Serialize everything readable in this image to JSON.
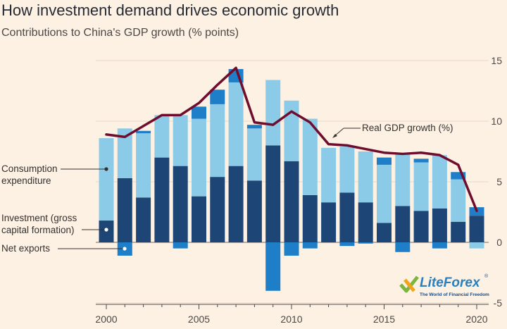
{
  "header": {
    "title": "How investment demand drives economic growth",
    "subtitle": "Contributions to China's GDP growth (% points)"
  },
  "chart_data": {
    "type": "bar",
    "stacked": true,
    "x": [
      2000,
      2001,
      2002,
      2003,
      2004,
      2005,
      2006,
      2007,
      2008,
      2009,
      2010,
      2011,
      2012,
      2013,
      2014,
      2015,
      2016,
      2017,
      2018,
      2019,
      2020
    ],
    "xticks": [
      "2000",
      "2005",
      "2010",
      "2015",
      "2020"
    ],
    "yticks": [
      "15",
      "10",
      "5",
      "0",
      "-5"
    ],
    "ylim": [
      -5,
      15
    ],
    "series": [
      {
        "name": "Investment (gross capital formation)",
        "color": "#1d4677",
        "values": [
          1.8,
          5.3,
          3.7,
          7.0,
          6.3,
          3.8,
          5.4,
          6.3,
          5.1,
          8.0,
          6.7,
          3.9,
          3.3,
          4.1,
          3.3,
          1.6,
          3.0,
          2.6,
          2.8,
          1.7,
          2.2
        ]
      },
      {
        "name": "Consumption expenditure",
        "color": "#8ccbe8",
        "values": [
          6.8,
          4.1,
          5.3,
          3.5,
          4.2,
          6.4,
          6.0,
          6.9,
          4.3,
          5.4,
          5.0,
          6.3,
          4.5,
          3.8,
          4.2,
          4.8,
          4.3,
          4.0,
          4.4,
          3.5,
          -0.5
        ]
      },
      {
        "name": "Net exports",
        "color": "#1f7ec8",
        "values": [
          0.0,
          -1.1,
          0.2,
          0.0,
          -0.5,
          1.0,
          1.2,
          1.1,
          0.3,
          -4.0,
          -1.1,
          -0.5,
          0.0,
          -0.3,
          -0.1,
          0.6,
          -0.8,
          0.3,
          -0.5,
          0.6,
          0.7
        ]
      }
    ],
    "line": {
      "name": "Real GDP growth (%)",
      "color": "#6e0d2e",
      "values": [
        8.9,
        8.7,
        9.6,
        10.5,
        10.5,
        11.5,
        13.0,
        14.4,
        9.9,
        9.7,
        10.8,
        9.9,
        8.1,
        8.0,
        7.7,
        7.4,
        7.3,
        7.4,
        7.2,
        6.4,
        2.6
      ]
    },
    "annotations": [
      {
        "text": "Consumption",
        "series": "consumption"
      },
      {
        "text": "expenditure",
        "series": "consumption"
      },
      {
        "text": "Investment (gross",
        "series": "investment"
      },
      {
        "text": "capital formation)",
        "series": "investment"
      },
      {
        "text": "Net exports",
        "series": "net_exports"
      },
      {
        "text": "Real GDP growth (%)",
        "series": "gdp"
      }
    ]
  },
  "watermark": {
    "brand": "LiteForex",
    "tagline": "The World of Financial Freedom"
  }
}
